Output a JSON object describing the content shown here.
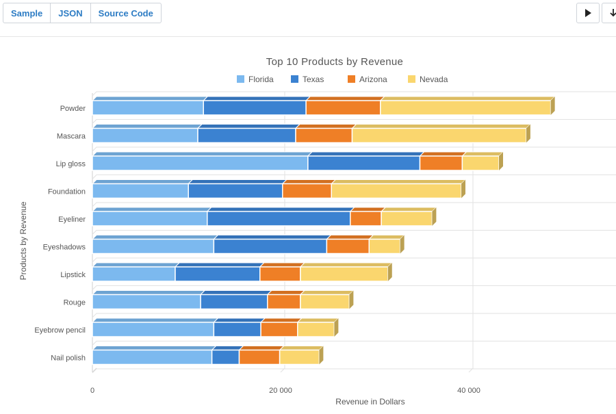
{
  "toolbar": {
    "tabs": [
      "Sample",
      "JSON",
      "Source Code"
    ],
    "play_icon": "play-icon",
    "download_icon": "download-icon"
  },
  "chart_data": {
    "type": "bar",
    "orientation": "horizontal",
    "stacked": true,
    "style": "3d",
    "title": "Top 10 Products by Revenue",
    "xlabel": "Revenue in Dollars",
    "ylabel": "Products by Revenue",
    "xlim": [
      0,
      56000
    ],
    "x_ticks": [
      0,
      20000,
      40000
    ],
    "x_tick_labels": [
      "0",
      "20 000",
      "40 000"
    ],
    "grid": true,
    "legend_position": "top",
    "categories": [
      "Powder",
      "Mascara",
      "Lip gloss",
      "Foundation",
      "Eyeliner",
      "Eyeshadows",
      "Lipstick",
      "Rouge",
      "Eyebrow pencil",
      "Nail polish"
    ],
    "series": [
      {
        "name": "Florida",
        "color": "#7cb9ef",
        "values": [
          11800,
          11200,
          22900,
          10200,
          12200,
          12900,
          8800,
          11500,
          12900,
          12700
        ]
      },
      {
        "name": "Texas",
        "color": "#3b82d1",
        "values": [
          10900,
          10400,
          11900,
          10000,
          15200,
          12000,
          9000,
          7100,
          5000,
          2900
        ]
      },
      {
        "name": "Arizona",
        "color": "#ef7f26",
        "values": [
          7900,
          6000,
          4500,
          5200,
          3300,
          4500,
          4300,
          3500,
          3900,
          4300
        ]
      },
      {
        "name": "Nevada",
        "color": "#fad66e",
        "values": [
          18100,
          18500,
          3900,
          13800,
          5400,
          3300,
          9300,
          5200,
          3900,
          4200
        ]
      }
    ]
  }
}
